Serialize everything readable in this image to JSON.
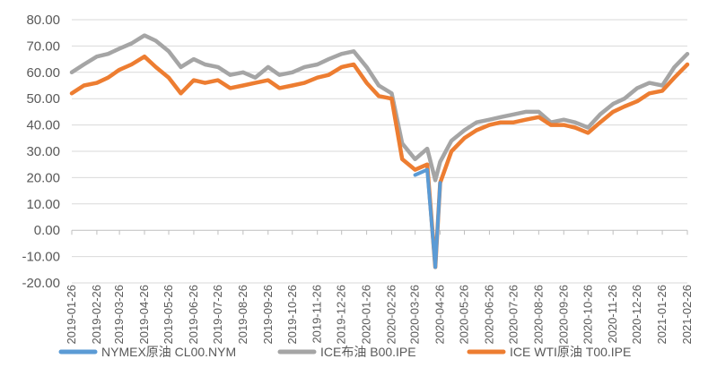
{
  "chart_data": {
    "type": "line",
    "y_ticks": [
      "80.00",
      "70.00",
      "60.00",
      "50.00",
      "40.00",
      "30.00",
      "20.00",
      "10.00",
      "0.00",
      "-10.00",
      "-20.00"
    ],
    "ylim": [
      -20,
      80
    ],
    "x_tick_labels": [
      "2019-01-26",
      "2019-02-26",
      "2019-03-26",
      "2019-04-26",
      "2019-05-26",
      "2019-06-26",
      "2019-07-26",
      "2019-08-26",
      "2019-09-26",
      "2019-10-26",
      "2019-11-26",
      "2019-12-26",
      "2020-01-26",
      "2020-02-26",
      "2020-03-26",
      "2020-04-26",
      "2020-05-26",
      "2020-06-26",
      "2020-07-26",
      "2020-08-26",
      "2020-09-26",
      "2020-10-26",
      "2020-11-26",
      "2020-12-26",
      "2021-01-26",
      "2021-02-26"
    ],
    "x": [
      "2019-01-26",
      "2019-02-10",
      "2019-02-26",
      "2019-03-12",
      "2019-03-26",
      "2019-04-10",
      "2019-04-26",
      "2019-05-10",
      "2019-05-26",
      "2019-06-10",
      "2019-06-26",
      "2019-07-10",
      "2019-07-26",
      "2019-08-10",
      "2019-08-26",
      "2019-09-10",
      "2019-09-26",
      "2019-10-10",
      "2019-10-26",
      "2019-11-10",
      "2019-11-26",
      "2019-12-10",
      "2019-12-26",
      "2020-01-10",
      "2020-01-26",
      "2020-02-10",
      "2020-02-26",
      "2020-03-10",
      "2020-03-26",
      "2020-04-10",
      "2020-04-20",
      "2020-04-26",
      "2020-05-10",
      "2020-05-26",
      "2020-06-10",
      "2020-06-26",
      "2020-07-10",
      "2020-07-26",
      "2020-08-10",
      "2020-08-26",
      "2020-09-10",
      "2020-09-26",
      "2020-10-10",
      "2020-10-26",
      "2020-11-10",
      "2020-11-26",
      "2020-12-10",
      "2020-12-26",
      "2021-01-10",
      "2021-01-26",
      "2021-02-10",
      "2021-02-26"
    ],
    "series": [
      {
        "name": "NYMEX原油 CL00.NYM",
        "color": "#5b9bd5",
        "values": [
          null,
          null,
          null,
          null,
          null,
          null,
          null,
          null,
          null,
          null,
          null,
          null,
          null,
          null,
          null,
          null,
          null,
          null,
          null,
          null,
          null,
          null,
          null,
          null,
          null,
          null,
          null,
          null,
          21,
          23,
          -14,
          18,
          null,
          null,
          null,
          null,
          null,
          null,
          null,
          null,
          null,
          null,
          null,
          null,
          null,
          null,
          null,
          null,
          null,
          null,
          null,
          null
        ]
      },
      {
        "name": "ICE布油 B00.IPE",
        "color": "#a5a5a5",
        "values": [
          60,
          63,
          66,
          67,
          69,
          71,
          74,
          72,
          68,
          62,
          65,
          63,
          62,
          59,
          60,
          58,
          62,
          59,
          60,
          62,
          63,
          65,
          67,
          68,
          62,
          55,
          52,
          33,
          27,
          31,
          19,
          26,
          34,
          38,
          41,
          42,
          43,
          44,
          45,
          45,
          41,
          42,
          41,
          39,
          44,
          48,
          50,
          54,
          56,
          55,
          62,
          67
        ]
      },
      {
        "name": "ICE WTI原油 T00.IPE",
        "color": "#ed7d31",
        "values": [
          52,
          55,
          56,
          58,
          61,
          63,
          66,
          62,
          58,
          52,
          57,
          56,
          57,
          54,
          55,
          56,
          57,
          54,
          55,
          56,
          58,
          59,
          62,
          63,
          56,
          51,
          50,
          27,
          23,
          25,
          -14,
          18,
          30,
          35,
          38,
          40,
          41,
          41,
          42,
          43,
          40,
          40,
          39,
          37,
          41,
          45,
          47,
          49,
          52,
          53,
          58,
          63
        ]
      }
    ]
  }
}
